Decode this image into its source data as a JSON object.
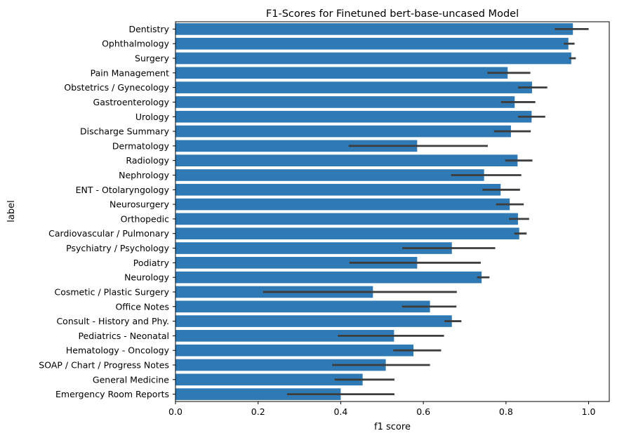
{
  "chart_data": {
    "type": "bar",
    "orientation": "horizontal",
    "title": "F1-Scores for Finetuned bert-base-uncased Model",
    "xlabel": "f1 score",
    "ylabel": "label",
    "xlim": [
      0.0,
      1.05
    ],
    "xticks": [
      "0.0",
      "0.2",
      "0.4",
      "0.6",
      "0.8",
      "1.0"
    ],
    "grid": false,
    "bar_color": "#2f7ab5",
    "errorbar_color": "#3d3d3d",
    "categories": [
      "Dentistry",
      "Ophthalmology",
      "Surgery",
      "Pain Management",
      "Obstetrics / Gynecology",
      "Gastroenterology",
      "Urology",
      "Discharge Summary",
      "Dermatology",
      "Radiology",
      "Nephrology",
      "ENT - Otolaryngology",
      "Neurosurgery",
      "Orthopedic",
      "Cardiovascular / Pulmonary",
      "Psychiatry / Psychology",
      "Podiatry",
      "Neurology",
      "Cosmetic / Plastic Surgery",
      "Office Notes",
      "Consult - History and Phy.",
      "Pediatrics - Neonatal",
      "Hematology - Oncology",
      "SOAP / Chart / Progress Notes",
      "General Medicine",
      "Emergency Room Reports"
    ],
    "values": [
      0.962,
      0.951,
      0.958,
      0.804,
      0.863,
      0.821,
      0.862,
      0.812,
      0.585,
      0.828,
      0.747,
      0.787,
      0.809,
      0.829,
      0.832,
      0.669,
      0.585,
      0.741,
      0.478,
      0.616,
      0.669,
      0.529,
      0.576,
      0.509,
      0.453,
      0.4
    ],
    "error_low": [
      0.918,
      0.94,
      0.953,
      0.755,
      0.829,
      0.788,
      0.829,
      0.771,
      0.419,
      0.798,
      0.667,
      0.743,
      0.776,
      0.807,
      0.82,
      0.549,
      0.421,
      0.73,
      0.212,
      0.548,
      0.651,
      0.393,
      0.527,
      0.379,
      0.385,
      0.27
    ],
    "error_high": [
      1.0,
      0.966,
      0.969,
      0.859,
      0.9,
      0.871,
      0.895,
      0.86,
      0.756,
      0.864,
      0.837,
      0.834,
      0.843,
      0.856,
      0.85,
      0.774,
      0.739,
      0.76,
      0.681,
      0.68,
      0.692,
      0.65,
      0.643,
      0.616,
      0.53,
      0.53
    ]
  }
}
